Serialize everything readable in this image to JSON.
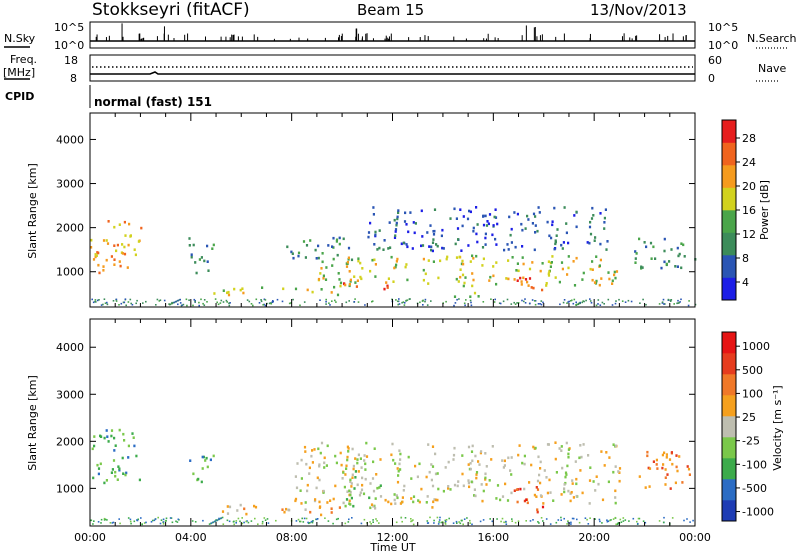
{
  "header": {
    "station": "Stokkseyri (fitACF)",
    "beam": "Beam 15",
    "date": "13/Nov/2013"
  },
  "strips": {
    "nsky_label": "N.Sky",
    "nsky_ticks": [
      "10^5",
      "10^0"
    ],
    "nsearch_label": "N.Search",
    "nsearch_ticks": [
      "10^5",
      "10^0"
    ],
    "freq_label": "Freq.",
    "freq_unit": "[MHz]",
    "freq_ticks": [
      "18",
      "8"
    ],
    "nave_label": "Nave",
    "nave_ticks": [
      "60",
      "0"
    ],
    "cpid_label": "CPID",
    "cpid_value": "normal (fast) 151"
  },
  "colors": {
    "power": [
      "#1c1ee6",
      "#2a55b4",
      "#3c8c5a",
      "#4aa54a",
      "#d2d21e",
      "#f59b1e",
      "#f0641e",
      "#e61e1e"
    ],
    "velocity": [
      "#1e3cb4",
      "#2b6cc4",
      "#3cab4b",
      "#7ac84a",
      "#bebeb0",
      "#f5a01e",
      "#f07828",
      "#e63c1e",
      "#e61414"
    ]
  },
  "chart_data": [
    {
      "type": "heatmap",
      "name": "power",
      "ylabel": "Slant Range [km]",
      "yticks": [
        "4000",
        "3000",
        "2000",
        "1000"
      ],
      "ylim": [
        200,
        4600
      ],
      "xlim": [
        0,
        24
      ],
      "colorbar_label": "Power [dB]",
      "colorbar_ticks": [
        "28",
        "24",
        "20",
        "16",
        "12",
        "8",
        "4"
      ],
      "regions": [
        {
          "t": [
            0.0,
            2.0
          ],
          "r": [
            1000,
            2200
          ],
          "level": 5
        },
        {
          "t": [
            3.9,
            4.9
          ],
          "r": [
            1000,
            1800
          ],
          "level": 2
        },
        {
          "t": [
            4.8,
            9.8
          ],
          "r": [
            500,
            700
          ],
          "level": 4
        },
        {
          "t": [
            7.5,
            10.5
          ],
          "r": [
            1300,
            1800
          ],
          "level": 2
        },
        {
          "t": [
            9.0,
            21.0
          ],
          "r": [
            700,
            1400
          ],
          "level": 4
        },
        {
          "t": [
            10.0,
            12.2
          ],
          "r": [
            600,
            800
          ],
          "level": 6
        },
        {
          "t": [
            11.0,
            20.5
          ],
          "r": [
            1500,
            2500
          ],
          "level": 1
        },
        {
          "t": [
            14.2,
            15.5
          ],
          "r": [
            450,
            600
          ],
          "level": 3
        },
        {
          "t": [
            16.5,
            18.0
          ],
          "r": [
            600,
            900
          ],
          "level": 6
        },
        {
          "t": [
            21.5,
            24.0
          ],
          "r": [
            1100,
            1800
          ],
          "level": 2
        }
      ]
    },
    {
      "type": "heatmap",
      "name": "velocity",
      "ylabel": "Slant Range [km]",
      "yticks": [
        "4000",
        "3000",
        "2000",
        "1000"
      ],
      "ylim": [
        200,
        4600
      ],
      "xlim": [
        0,
        24
      ],
      "xlabel": "Time UT",
      "xticks": [
        "00:00",
        "04:00",
        "08:00",
        "12:00",
        "16:00",
        "20:00",
        "00:00"
      ],
      "colorbar_label": "Velocity [m s⁻¹]",
      "colorbar_ticks": [
        "1000",
        "500",
        "100",
        "25",
        "-25",
        "-100",
        "-500",
        "-1000"
      ],
      "regions": [
        {
          "t": [
            0.0,
            2.0
          ],
          "r": [
            1100,
            2300
          ],
          "level": 2
        },
        {
          "t": [
            3.9,
            4.9
          ],
          "r": [
            1100,
            1800
          ],
          "level": 2
        },
        {
          "t": [
            5.0,
            10.0
          ],
          "r": [
            450,
            700
          ],
          "level": 5
        },
        {
          "t": [
            8.0,
            21.0
          ],
          "r": [
            700,
            2000
          ],
          "level": 4
        },
        {
          "t": [
            10.0,
            11.5
          ],
          "r": [
            600,
            1400
          ],
          "level": 3
        },
        {
          "t": [
            11.0,
            14.0
          ],
          "r": [
            600,
            900
          ],
          "level": 4
        },
        {
          "t": [
            16.8,
            18.0
          ],
          "r": [
            500,
            1100
          ],
          "level": 7
        },
        {
          "t": [
            21.6,
            24.0
          ],
          "r": [
            1000,
            1800
          ],
          "level": 6
        }
      ]
    }
  ]
}
